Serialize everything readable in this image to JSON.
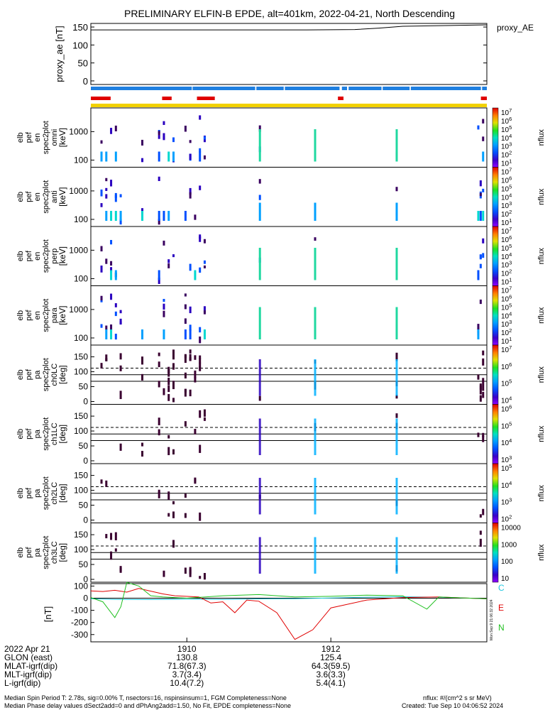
{
  "title": "PRELIMINARY ELFIN-B EPDE, alt=401km, 2022-04-21, North Descending",
  "colors": {
    "white": "#ffffff",
    "black": "#000000",
    "bar_blue": "#1f7fe0",
    "bar_red": "#e00000",
    "bar_yellow": "#f2d100",
    "ae_line": "#000000",
    "mag_C": "#20c8e0",
    "mag_E": "#e00000",
    "mag_N": "#20c020"
  },
  "proxy_panel": {
    "ylabel": "proxy_ae\n[nT]",
    "legend": "proxy_AE",
    "yticks": [
      "150",
      "100",
      "50",
      "0"
    ]
  },
  "flag_bars": {
    "blue_segments": [
      [
        0,
        0.255
      ],
      [
        0.257,
        0.415
      ],
      [
        0.418,
        0.487
      ],
      [
        0.49,
        0.628
      ],
      [
        0.634,
        0.647
      ],
      [
        0.651,
        0.734
      ],
      [
        0.737,
        0.805
      ],
      [
        0.808,
        0.985
      ],
      [
        0.988,
        1
      ]
    ],
    "red_segments": [
      [
        0,
        0.05
      ],
      [
        0.18,
        0.204
      ],
      [
        0.268,
        0.313
      ],
      [
        0.624,
        0.638
      ],
      [
        0.985,
        1
      ]
    ]
  },
  "spec_panels": [
    {
      "ylabel": [
        "elb",
        "pef",
        "en",
        "spec2plot",
        "omni",
        "[keV]"
      ],
      "yticks": [
        "1000",
        "100"
      ],
      "cbar_ticks": [
        "10^7",
        "10^6",
        "10^5",
        "10^4",
        "10^3",
        "10^2",
        "10^1"
      ],
      "cbar_title": "nflux"
    },
    {
      "ylabel": [
        "elb",
        "pef",
        "en",
        "spec2plot",
        "anti",
        "[keV]"
      ],
      "yticks": [
        "1000",
        "100"
      ],
      "cbar_ticks": [
        "10^7",
        "10^6",
        "10^5",
        "10^4",
        "10^3",
        "10^2",
        "10^1"
      ],
      "cbar_title": "nflux"
    },
    {
      "ylabel": [
        "elb",
        "pef",
        "en",
        "spec2plot",
        "perp",
        "[keV]"
      ],
      "yticks": [
        "1000",
        "100"
      ],
      "cbar_ticks": [
        "10^7",
        "10^6",
        "10^5",
        "10^4",
        "10^3",
        "10^2",
        "10^1"
      ],
      "cbar_title": "nflux"
    },
    {
      "ylabel": [
        "elb",
        "pef",
        "en",
        "spec2plot",
        "para",
        "[keV]"
      ],
      "yticks": [
        "1000",
        "100"
      ],
      "cbar_ticks": [
        "10^7",
        "10^6",
        "10^5",
        "10^4",
        "10^3",
        "10^2",
        "10^1"
      ],
      "cbar_title": "nflux"
    }
  ],
  "pa_panels": [
    {
      "ylabel": [
        "elb",
        "pef",
        "pa",
        "spec2plot",
        "ch0LC",
        "[deg]"
      ],
      "yticks": [
        "150",
        "100",
        "50",
        "0"
      ],
      "cbar_ticks": [
        "10^7",
        "10^6",
        "10^5",
        "10^4"
      ],
      "cbar_title": "nflux"
    },
    {
      "ylabel": [
        "elb",
        "pef",
        "pa",
        "spec2plot",
        "ch1LC",
        "[deg]"
      ],
      "yticks": [
        "150",
        "100",
        "50",
        "0"
      ],
      "cbar_ticks": [
        "10^6",
        "10^5",
        "10^4",
        "10^3"
      ],
      "cbar_title": "nflux"
    },
    {
      "ylabel": [
        "elb",
        "pef",
        "pa",
        "spec2plot",
        "ch2LC",
        "[deg]"
      ],
      "yticks": [
        "150",
        "100",
        "50",
        "0"
      ],
      "cbar_ticks": [
        "10^5",
        "10^4",
        "10^3",
        "10^2"
      ],
      "cbar_title": "nflux"
    },
    {
      "ylabel": [
        "elb",
        "pef",
        "pa",
        "spec2plot",
        "ch3LC",
        "[deg]"
      ],
      "yticks": [
        "150",
        "100",
        "50",
        "0"
      ],
      "cbar_ticks": [
        "10000",
        "1000",
        "100",
        "10"
      ],
      "cbar_title": "nflux"
    }
  ],
  "mag_panel": {
    "ylabel": "[nT]",
    "yticks": [
      "100",
      "0",
      "-100",
      "-200",
      "-300"
    ],
    "legend": [
      "C",
      "E",
      "N"
    ],
    "side_text": "Mon Sep 9 21:06:32 2024"
  },
  "footer": {
    "rows": [
      {
        "label": "2022 Apr 21",
        "v1": "1910",
        "v2": "1912"
      },
      {
        "label": "GLON (east)",
        "v1": "130.8",
        "v2": "125.4"
      },
      {
        "label": "MLAT-igrf(dip)",
        "v1": "71.8(67.3)",
        "v2": "64.3(59.5)"
      },
      {
        "label": "MLT-igrf(dip)",
        "v1": "3.7(3.4)",
        "v2": "3.6(3.3)"
      },
      {
        "label": "L-igrf(dip)",
        "v1": "10.4(7.2)",
        "v2": "5.4(4.1)"
      }
    ],
    "note1": "Median Spin Period T: 2.78s, sig=0.00% T, nsectors=16, nspinsinsum=1, FGM Completeness=None",
    "note2": "Median Phase delay values dSect2add=0 and dPhAng2add=1.50, No Fit, EPDE completeness=None",
    "units": "nflux: #/(cm^2 s sr MeV)",
    "created": "Created: Tue Sep 10 04:06:52 2024"
  },
  "chart_data": {
    "type": "line",
    "x_axis": {
      "unit": "UT hhmm",
      "range": [
        "1908:40",
        "1914:10"
      ],
      "labeled_ticks": [
        "1910",
        "1912"
      ]
    },
    "proxy_ae": {
      "ylim": [
        -10,
        160
      ],
      "x": [
        "1908:40",
        "1911:40",
        "1912:20",
        "1912:40",
        "1913:00",
        "1914:10"
      ],
      "values": [
        142,
        142,
        143,
        147,
        152,
        156
      ]
    },
    "mag_dB": {
      "ylim": [
        -360,
        120
      ],
      "series": [
        {
          "name": "C",
          "x": [
            "1908:40",
            "1909:00",
            "1909:30",
            "1910:00",
            "1910:30",
            "1911:00",
            "1911:30",
            "1912:00",
            "1912:30",
            "1913:00",
            "1913:30",
            "1914:10"
          ],
          "values": [
            -5,
            -10,
            -12,
            -8,
            -10,
            -6,
            -4,
            2,
            8,
            12,
            8,
            -4
          ]
        },
        {
          "name": "E",
          "x": [
            "1908:40",
            "1908:50",
            "1909:00",
            "1909:10",
            "1909:20",
            "1909:40",
            "1909:50",
            "1910:10",
            "1910:20",
            "1910:30",
            "1910:40",
            "1910:50",
            "1911:00",
            "1911:15",
            "1911:30",
            "1911:45",
            "1912:00",
            "1912:30",
            "1913:00",
            "1913:30",
            "1914:10"
          ],
          "values": [
            60,
            55,
            65,
            50,
            80,
            35,
            20,
            10,
            -40,
            -30,
            -120,
            -15,
            -25,
            -120,
            -340,
            -260,
            -80,
            -15,
            5,
            10,
            -5
          ]
        },
        {
          "name": "N",
          "x": [
            "1908:40",
            "1908:50",
            "1909:00",
            "1909:05",
            "1909:10",
            "1909:20",
            "1909:30",
            "1909:40",
            "1910:00",
            "1910:30",
            "1911:00",
            "1911:30",
            "1912:00",
            "1912:30",
            "1913:00",
            "1913:20",
            "1913:30",
            "1914:10"
          ],
          "values": [
            5,
            -30,
            -160,
            -70,
            130,
            100,
            20,
            10,
            0,
            20,
            30,
            10,
            15,
            25,
            20,
            -90,
            10,
            -5
          ]
        }
      ]
    },
    "spectrogram_colorbar": {
      "scale": "log",
      "range": [
        10,
        10000000
      ],
      "colormap": "rainbow"
    }
  }
}
